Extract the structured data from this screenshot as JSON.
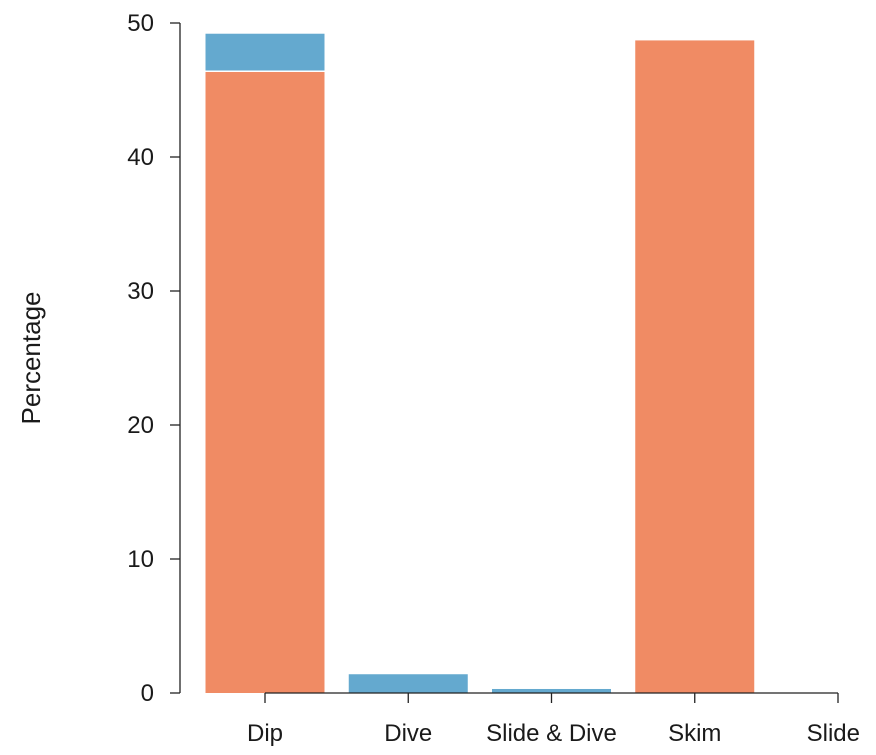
{
  "chart_data": {
    "type": "bar",
    "stacked": true,
    "title": "",
    "xlabel": "",
    "ylabel": "Percentage",
    "categories": [
      "Dip",
      "Dive",
      "Slide & Dive",
      "Skim",
      "Slide"
    ],
    "ylim": [
      0,
      50
    ],
    "yticks": [
      0,
      10,
      20,
      30,
      40,
      50
    ],
    "grid": false,
    "legend": "none",
    "series": [
      {
        "values": [
          46.4,
          0,
          0,
          48.7,
          0
        ],
        "color": "#F08B64"
      },
      {
        "values": [
          2.8,
          1.4,
          0.3,
          0,
          0
        ],
        "color": "#64A9CF"
      }
    ]
  }
}
